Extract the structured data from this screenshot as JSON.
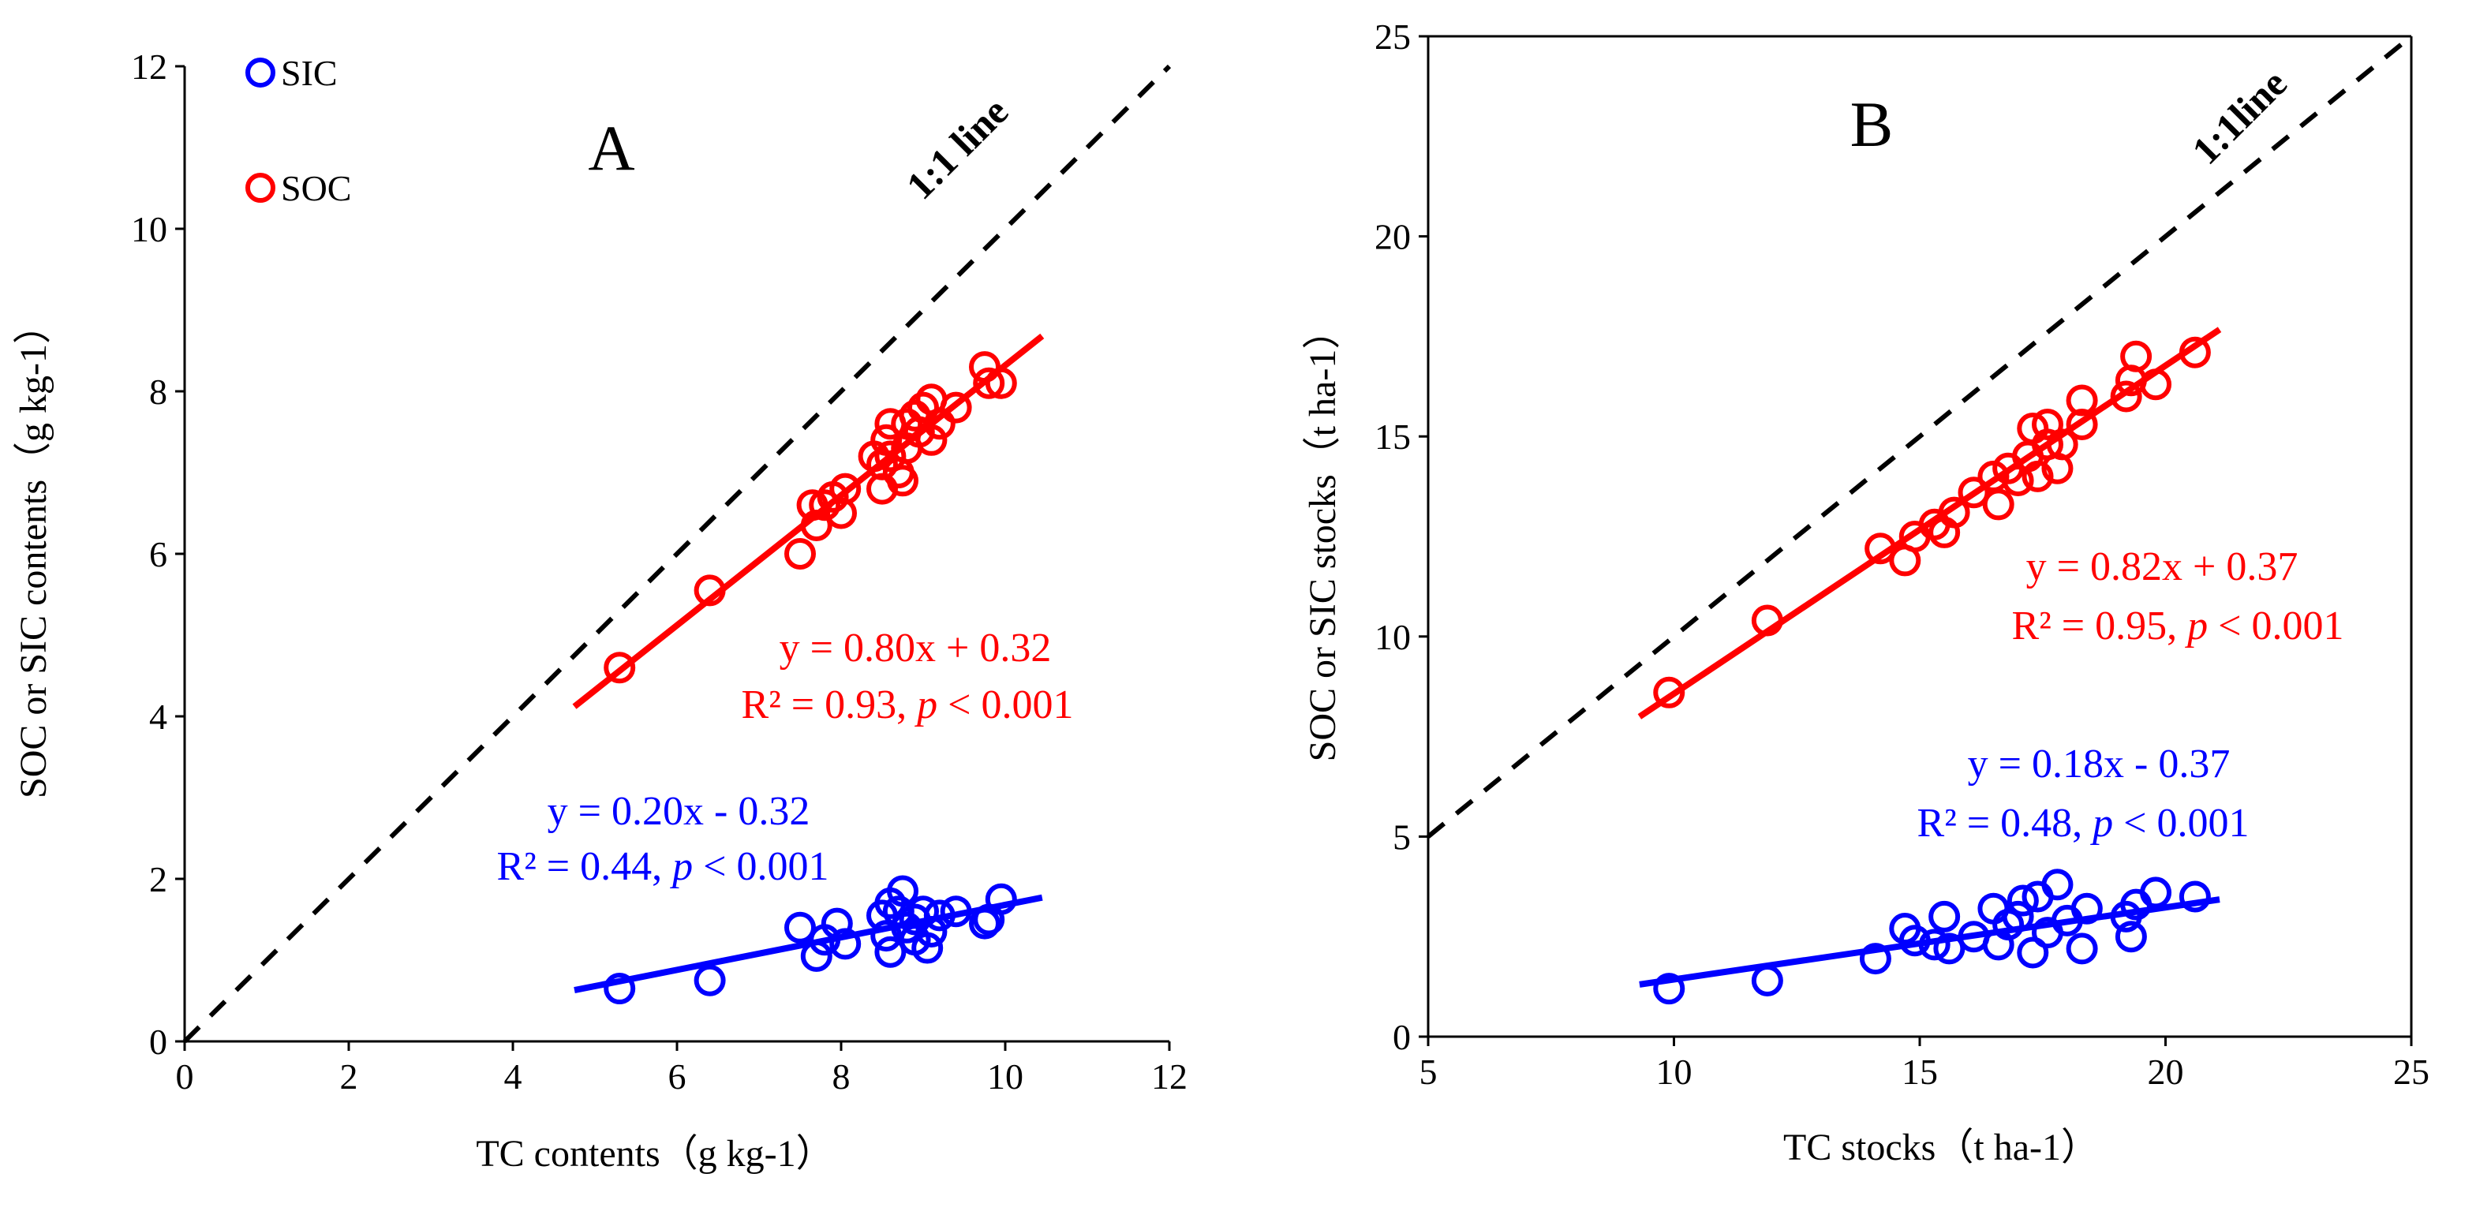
{
  "colors": {
    "SIC": "#0000ff",
    "SOC": "#ff0000",
    "axis": "#000000",
    "one_to_one": "#000000"
  },
  "chart_data": [
    {
      "type": "scatter",
      "panel_label": "A",
      "xlabel": "TC contents（g kg-1）",
      "ylabel": "SOC or SIC contents（g kg-1）",
      "xlim": [
        0,
        12
      ],
      "ylim": [
        0,
        12
      ],
      "xticks": [
        "0",
        "2",
        "4",
        "6",
        "8",
        "10",
        "12"
      ],
      "yticks": [
        "0",
        "2",
        "4",
        "6",
        "8",
        "10",
        "12"
      ],
      "one_to_one_label": "1:1 line",
      "legend": {
        "position": "top-left",
        "entries": [
          "SIC",
          "SOC"
        ]
      },
      "series": [
        {
          "name": "SIC",
          "color": "#0000ff",
          "fit": {
            "slope": 0.2,
            "intercept": -0.32,
            "x_range": [
              4.75,
              10.45
            ]
          },
          "equation": "y = 0.20x - 0.32",
          "r2_text": "R² = 0.44, ",
          "p_label": "p",
          "p_text": " < 0.001",
          "points": [
            [
              5.3,
              0.65
            ],
            [
              6.4,
              0.75
            ],
            [
              7.5,
              1.4
            ],
            [
              7.7,
              1.05
            ],
            [
              7.8,
              1.25
            ],
            [
              7.95,
              1.45
            ],
            [
              8.05,
              1.2
            ],
            [
              8.5,
              1.55
            ],
            [
              8.55,
              1.3
            ],
            [
              8.6,
              1.7
            ],
            [
              8.6,
              1.1
            ],
            [
              8.75,
              1.85
            ],
            [
              8.8,
              1.4
            ],
            [
              8.9,
              1.25
            ],
            [
              9.0,
              1.6
            ],
            [
              9.05,
              1.15
            ],
            [
              9.1,
              1.35
            ],
            [
              9.2,
              1.55
            ],
            [
              9.4,
              1.6
            ],
            [
              9.75,
              1.45
            ],
            [
              9.8,
              1.5
            ],
            [
              9.95,
              1.75
            ],
            [
              8.7,
              1.6
            ],
            [
              8.9,
              1.5
            ]
          ]
        },
        {
          "name": "SOC",
          "color": "#ff0000",
          "fit": {
            "slope": 0.8,
            "intercept": 0.32,
            "x_range": [
              4.75,
              10.45
            ]
          },
          "equation": "y = 0.80x + 0.32",
          "r2_text": "R² = 0.93, ",
          "p_label": "p",
          "p_text": " < 0.001",
          "points": [
            [
              5.3,
              4.6
            ],
            [
              6.4,
              5.55
            ],
            [
              7.5,
              6.0
            ],
            [
              7.65,
              6.6
            ],
            [
              7.8,
              6.6
            ],
            [
              7.9,
              6.7
            ],
            [
              8.0,
              6.5
            ],
            [
              8.05,
              6.8
            ],
            [
              7.7,
              6.35
            ],
            [
              8.5,
              6.8
            ],
            [
              8.5,
              7.1
            ],
            [
              8.6,
              7.2
            ],
            [
              8.55,
              7.4
            ],
            [
              8.7,
              7.0
            ],
            [
              8.75,
              6.9
            ],
            [
              8.8,
              7.3
            ],
            [
              8.8,
              7.6
            ],
            [
              8.9,
              7.7
            ],
            [
              8.95,
              7.5
            ],
            [
              9.0,
              7.8
            ],
            [
              9.1,
              7.9
            ],
            [
              9.1,
              7.4
            ],
            [
              9.2,
              7.6
            ],
            [
              9.4,
              7.8
            ],
            [
              9.75,
              8.3
            ],
            [
              9.8,
              8.1
            ],
            [
              9.95,
              8.1
            ],
            [
              8.6,
              7.6
            ],
            [
              8.4,
              7.2
            ]
          ]
        }
      ]
    },
    {
      "type": "scatter",
      "panel_label": "B",
      "xlabel": "TC stocks（t ha-1）",
      "ylabel": "SOC or SIC stocks（t ha-1）",
      "xlim": [
        5,
        25
      ],
      "ylim": [
        0,
        25
      ],
      "xticks": [
        "5",
        "10",
        "15",
        "20",
        "25"
      ],
      "yticks": [
        "0",
        "5",
        "10",
        "15",
        "20",
        "25"
      ],
      "one_to_one_label": "1:1line",
      "series": [
        {
          "name": "SIC",
          "color": "#0000ff",
          "fit": {
            "slope": 0.18,
            "intercept": -0.37,
            "x_range": [
              9.3,
              21.1
            ]
          },
          "equation": "y = 0.18x - 0.37",
          "r2_text": "R² = 0.48, ",
          "p_label": "p",
          "p_text": " < 0.001",
          "points": [
            [
              9.9,
              1.2
            ],
            [
              11.9,
              1.4
            ],
            [
              14.1,
              1.95
            ],
            [
              14.7,
              2.7
            ],
            [
              14.9,
              2.4
            ],
            [
              15.3,
              2.3
            ],
            [
              15.5,
              3.0
            ],
            [
              15.6,
              2.2
            ],
            [
              16.1,
              2.5
            ],
            [
              16.5,
              3.2
            ],
            [
              16.6,
              2.3
            ],
            [
              16.8,
              2.8
            ],
            [
              17.0,
              3.0
            ],
            [
              17.1,
              3.4
            ],
            [
              17.3,
              2.1
            ],
            [
              17.4,
              3.5
            ],
            [
              17.6,
              2.6
            ],
            [
              17.8,
              3.8
            ],
            [
              18.0,
              2.9
            ],
            [
              18.3,
              2.2
            ],
            [
              18.4,
              3.2
            ],
            [
              19.2,
              3.0
            ],
            [
              19.3,
              2.5
            ],
            [
              19.4,
              3.3
            ],
            [
              19.8,
              3.6
            ],
            [
              20.6,
              3.5
            ]
          ]
        },
        {
          "name": "SOC",
          "color": "#ff0000",
          "fit": {
            "slope": 0.82,
            "intercept": 0.37,
            "x_range": [
              9.3,
              21.1
            ]
          },
          "equation": "y = 0.82x + 0.37",
          "r2_text": "R² = 0.95, ",
          "p_label": "p",
          "p_text": " < 0.001",
          "points": [
            [
              9.9,
              8.6
            ],
            [
              11.9,
              10.4
            ],
            [
              14.2,
              12.2
            ],
            [
              14.7,
              11.9
            ],
            [
              14.9,
              12.5
            ],
            [
              15.3,
              12.8
            ],
            [
              15.5,
              12.6
            ],
            [
              15.7,
              13.1
            ],
            [
              16.1,
              13.6
            ],
            [
              16.5,
              14.0
            ],
            [
              16.6,
              13.3
            ],
            [
              16.8,
              14.2
            ],
            [
              17.0,
              13.9
            ],
            [
              17.2,
              14.5
            ],
            [
              17.3,
              15.2
            ],
            [
              17.4,
              14.0
            ],
            [
              17.6,
              14.8
            ],
            [
              17.8,
              14.2
            ],
            [
              17.9,
              14.8
            ],
            [
              18.3,
              15.3
            ],
            [
              18.3,
              15.9
            ],
            [
              19.2,
              16.0
            ],
            [
              19.3,
              16.4
            ],
            [
              19.4,
              17.0
            ],
            [
              19.8,
              16.3
            ],
            [
              20.6,
              17.1
            ],
            [
              17.6,
              15.3
            ]
          ]
        }
      ]
    }
  ]
}
